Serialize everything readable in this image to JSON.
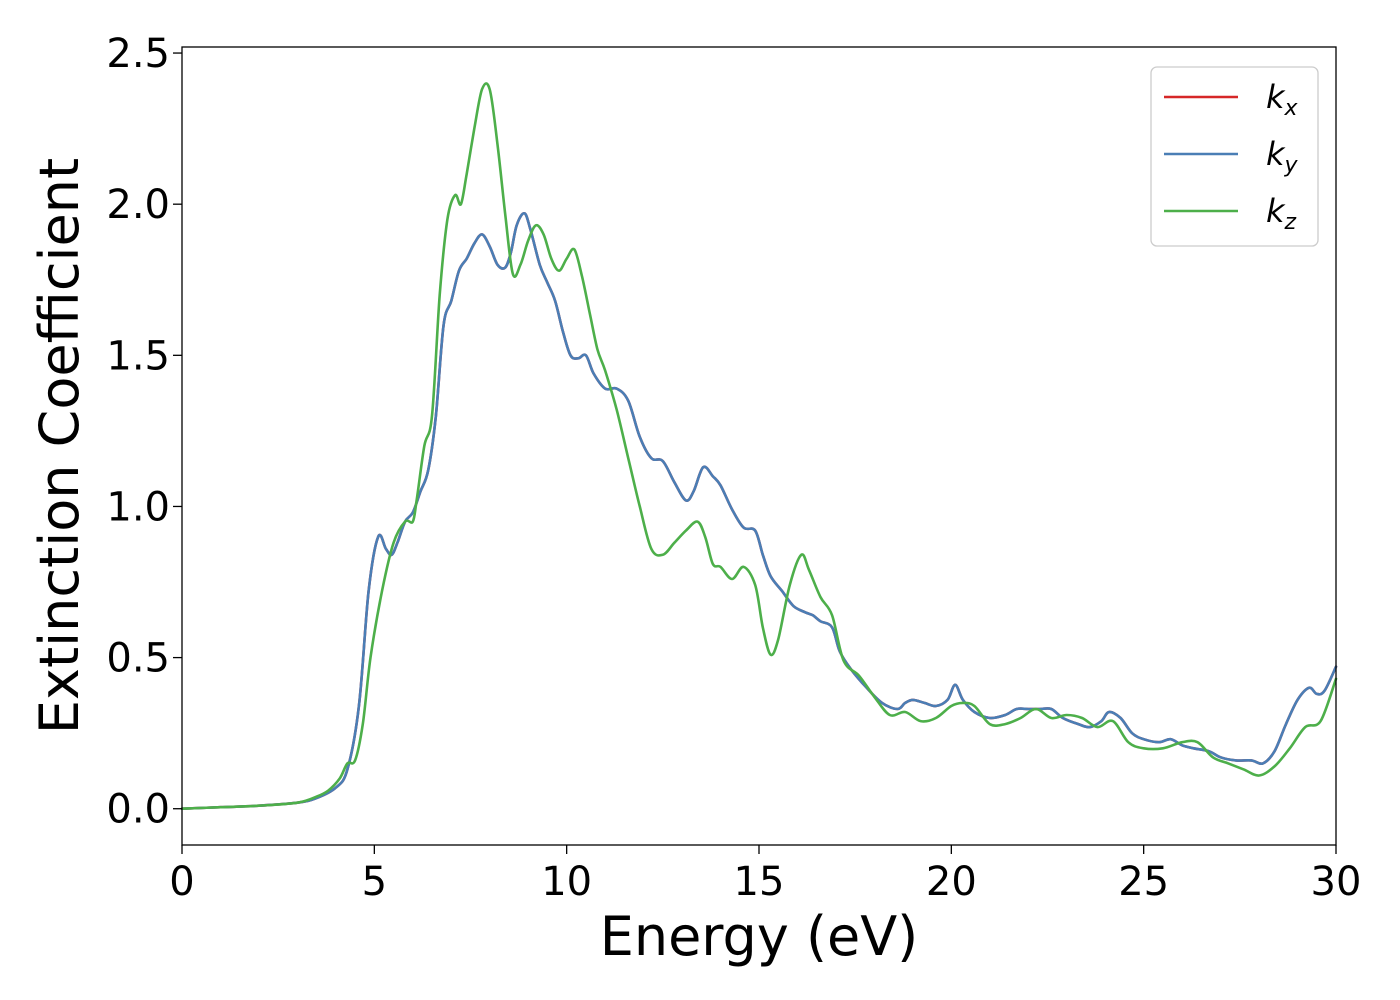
{
  "chart_data": {
    "type": "line",
    "title": "",
    "xlabel": "Energy (eV)",
    "ylabel": "Extinction Coefficient",
    "xlim": [
      0,
      30
    ],
    "ylim": [
      -0.12,
      2.52
    ],
    "xticks": [
      0,
      5,
      10,
      15,
      20,
      25,
      30
    ],
    "yticks": [
      0.0,
      0.5,
      1.0,
      1.5,
      2.0,
      2.5
    ],
    "xtick_labels": [
      "0",
      "5",
      "10",
      "15",
      "20",
      "25",
      "30"
    ],
    "ytick_labels": [
      "0.0",
      "0.5",
      "1.0",
      "1.5",
      "2.0",
      "2.5"
    ],
    "grid": false,
    "legend_position": "top-right",
    "series": [
      {
        "name": "k",
        "subscript": "x",
        "color": "#d62728",
        "x": [
          0,
          1,
          2,
          3,
          3.5,
          4,
          4.3,
          4.6,
          4.85,
          5.1,
          5.3,
          5.45,
          5.6,
          5.8,
          6,
          6.2,
          6.4,
          6.6,
          6.8,
          7.0,
          7.2,
          7.4,
          7.6,
          7.8,
          8.0,
          8.2,
          8.4,
          8.55,
          8.7,
          8.9,
          9.05,
          9.3,
          9.5,
          9.7,
          9.9,
          10.1,
          10.3,
          10.5,
          10.7,
          11.0,
          11.3,
          11.6,
          11.9,
          12.2,
          12.5,
          12.8,
          13.1,
          13.3,
          13.55,
          13.8,
          14.0,
          14.3,
          14.6,
          14.9,
          15.1,
          15.3,
          15.6,
          15.9,
          16.2,
          16.4,
          16.6,
          16.9,
          17.1,
          17.4,
          17.8,
          18.2,
          18.6,
          18.8,
          19.0,
          19.3,
          19.6,
          19.9,
          20.1,
          20.3,
          20.6,
          21.0,
          21.4,
          21.7,
          22.0,
          22.3,
          22.6,
          22.9,
          23.3,
          23.6,
          23.9,
          24.1,
          24.4,
          24.7,
          25.0,
          25.4,
          25.7,
          26.0,
          26.3,
          26.7,
          27.0,
          27.4,
          27.8,
          28.1,
          28.4,
          28.7,
          29.0,
          29.3,
          29.5,
          29.7,
          30.0
        ],
        "y": [
          0.0,
          0.005,
          0.01,
          0.02,
          0.035,
          0.07,
          0.13,
          0.34,
          0.72,
          0.9,
          0.86,
          0.84,
          0.88,
          0.95,
          0.98,
          1.05,
          1.12,
          1.3,
          1.6,
          1.68,
          1.78,
          1.82,
          1.87,
          1.9,
          1.86,
          1.8,
          1.79,
          1.84,
          1.93,
          1.97,
          1.92,
          1.8,
          1.74,
          1.68,
          1.58,
          1.5,
          1.49,
          1.5,
          1.44,
          1.39,
          1.39,
          1.35,
          1.23,
          1.16,
          1.15,
          1.08,
          1.02,
          1.05,
          1.13,
          1.1,
          1.07,
          0.99,
          0.93,
          0.92,
          0.84,
          0.77,
          0.72,
          0.67,
          0.65,
          0.64,
          0.62,
          0.6,
          0.52,
          0.46,
          0.4,
          0.35,
          0.33,
          0.35,
          0.36,
          0.35,
          0.34,
          0.36,
          0.41,
          0.36,
          0.32,
          0.3,
          0.31,
          0.33,
          0.33,
          0.33,
          0.33,
          0.3,
          0.28,
          0.27,
          0.29,
          0.32,
          0.3,
          0.25,
          0.23,
          0.22,
          0.23,
          0.21,
          0.2,
          0.19,
          0.17,
          0.16,
          0.16,
          0.15,
          0.19,
          0.28,
          0.36,
          0.4,
          0.38,
          0.39,
          0.47
        ]
      },
      {
        "name": "k",
        "subscript": "y",
        "color": "#4a7eb5",
        "x": [
          0,
          1,
          2,
          3,
          3.5,
          4,
          4.3,
          4.6,
          4.85,
          5.1,
          5.3,
          5.45,
          5.6,
          5.8,
          6,
          6.2,
          6.4,
          6.6,
          6.8,
          7.0,
          7.2,
          7.4,
          7.6,
          7.8,
          8.0,
          8.2,
          8.4,
          8.55,
          8.7,
          8.9,
          9.05,
          9.3,
          9.5,
          9.7,
          9.9,
          10.1,
          10.3,
          10.5,
          10.7,
          11.0,
          11.3,
          11.6,
          11.9,
          12.2,
          12.5,
          12.8,
          13.1,
          13.3,
          13.55,
          13.8,
          14.0,
          14.3,
          14.6,
          14.9,
          15.1,
          15.3,
          15.6,
          15.9,
          16.2,
          16.4,
          16.6,
          16.9,
          17.1,
          17.4,
          17.8,
          18.2,
          18.6,
          18.8,
          19.0,
          19.3,
          19.6,
          19.9,
          20.1,
          20.3,
          20.6,
          21.0,
          21.4,
          21.7,
          22.0,
          22.3,
          22.6,
          22.9,
          23.3,
          23.6,
          23.9,
          24.1,
          24.4,
          24.7,
          25.0,
          25.4,
          25.7,
          26.0,
          26.3,
          26.7,
          27.0,
          27.4,
          27.8,
          28.1,
          28.4,
          28.7,
          29.0,
          29.3,
          29.5,
          29.7,
          30.0
        ],
        "y": [
          0.0,
          0.005,
          0.01,
          0.02,
          0.035,
          0.07,
          0.13,
          0.34,
          0.72,
          0.9,
          0.86,
          0.84,
          0.88,
          0.95,
          0.98,
          1.05,
          1.12,
          1.3,
          1.6,
          1.68,
          1.78,
          1.82,
          1.87,
          1.9,
          1.86,
          1.8,
          1.79,
          1.84,
          1.93,
          1.97,
          1.92,
          1.8,
          1.74,
          1.68,
          1.58,
          1.5,
          1.49,
          1.5,
          1.44,
          1.39,
          1.39,
          1.35,
          1.23,
          1.16,
          1.15,
          1.08,
          1.02,
          1.05,
          1.13,
          1.1,
          1.07,
          0.99,
          0.93,
          0.92,
          0.84,
          0.77,
          0.72,
          0.67,
          0.65,
          0.64,
          0.62,
          0.6,
          0.52,
          0.46,
          0.4,
          0.35,
          0.33,
          0.35,
          0.36,
          0.35,
          0.34,
          0.36,
          0.41,
          0.36,
          0.32,
          0.3,
          0.31,
          0.33,
          0.33,
          0.33,
          0.33,
          0.3,
          0.28,
          0.27,
          0.29,
          0.32,
          0.3,
          0.25,
          0.23,
          0.22,
          0.23,
          0.21,
          0.2,
          0.19,
          0.17,
          0.16,
          0.16,
          0.15,
          0.19,
          0.28,
          0.36,
          0.4,
          0.38,
          0.39,
          0.47
        ]
      },
      {
        "name": "k",
        "subscript": "z",
        "color": "#4daf4a",
        "x": [
          0,
          1,
          2,
          3,
          3.5,
          3.8,
          4.1,
          4.3,
          4.5,
          4.7,
          4.9,
          5.2,
          5.5,
          5.8,
          6.0,
          6.1,
          6.3,
          6.5,
          6.7,
          6.9,
          7.1,
          7.25,
          7.4,
          7.6,
          7.8,
          8.0,
          8.2,
          8.4,
          8.6,
          8.8,
          9.0,
          9.2,
          9.4,
          9.6,
          9.8,
          10.0,
          10.2,
          10.4,
          10.6,
          10.8,
          11.0,
          11.3,
          11.6,
          11.9,
          12.2,
          12.5,
          12.8,
          13.1,
          13.4,
          13.6,
          13.8,
          14.0,
          14.3,
          14.6,
          14.9,
          15.1,
          15.3,
          15.5,
          15.8,
          16.1,
          16.3,
          16.6,
          16.9,
          17.2,
          17.6,
          18.0,
          18.4,
          18.8,
          19.2,
          19.6,
          20.0,
          20.3,
          20.6,
          21.0,
          21.4,
          21.8,
          22.2,
          22.6,
          23.0,
          23.4,
          23.8,
          24.2,
          24.6,
          25.0,
          25.5,
          26.0,
          26.4,
          26.8,
          27.2,
          27.6,
          28.0,
          28.4,
          28.8,
          29.2,
          29.6,
          30.0
        ],
        "y": [
          0.0,
          0.005,
          0.01,
          0.02,
          0.04,
          0.06,
          0.1,
          0.15,
          0.16,
          0.28,
          0.5,
          0.72,
          0.88,
          0.95,
          0.95,
          1.02,
          1.2,
          1.3,
          1.7,
          1.95,
          2.03,
          2.0,
          2.1,
          2.25,
          2.38,
          2.38,
          2.2,
          1.97,
          1.77,
          1.8,
          1.88,
          1.93,
          1.9,
          1.82,
          1.78,
          1.82,
          1.85,
          1.76,
          1.64,
          1.52,
          1.45,
          1.32,
          1.16,
          1.0,
          0.86,
          0.84,
          0.88,
          0.92,
          0.95,
          0.9,
          0.81,
          0.8,
          0.76,
          0.8,
          0.74,
          0.6,
          0.51,
          0.56,
          0.74,
          0.84,
          0.79,
          0.7,
          0.64,
          0.49,
          0.44,
          0.37,
          0.31,
          0.32,
          0.29,
          0.3,
          0.34,
          0.35,
          0.34,
          0.28,
          0.28,
          0.3,
          0.33,
          0.3,
          0.31,
          0.3,
          0.27,
          0.29,
          0.22,
          0.2,
          0.2,
          0.22,
          0.22,
          0.17,
          0.15,
          0.13,
          0.11,
          0.14,
          0.2,
          0.27,
          0.29,
          0.43
        ]
      }
    ]
  }
}
